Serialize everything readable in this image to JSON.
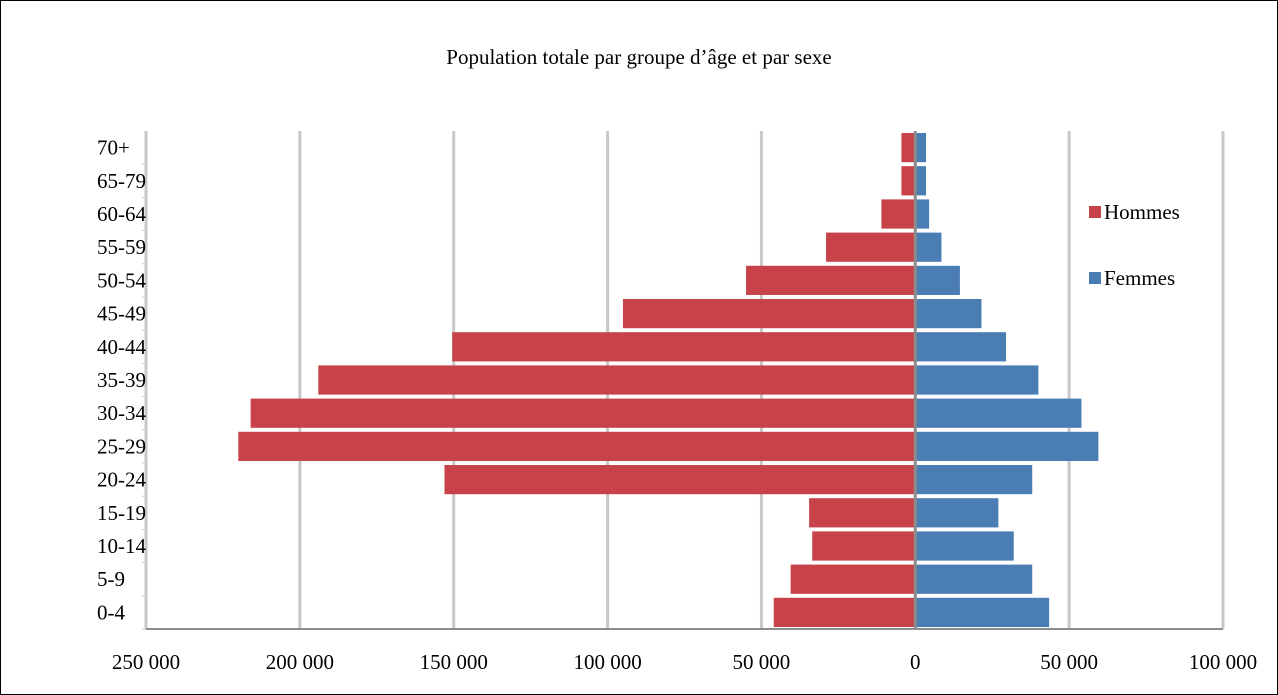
{
  "chart_data": {
    "type": "bar",
    "orientation": "horizontal",
    "title": "Population totale par groupe d’âge et par sexe",
    "xlabel": "",
    "ylabel": "",
    "categories": [
      "0-4",
      "5-9",
      "10-14",
      "15-19",
      "20-24",
      "25-29",
      "30-34",
      "35-39",
      "40-44",
      "45-49",
      "50-54",
      "55-59",
      "60-64",
      "65-79",
      "70+"
    ],
    "series": [
      {
        "name": "Hommes",
        "color": "#C8424A",
        "values": [
          -46000,
          -40500,
          -33500,
          -34500,
          -153000,
          -220000,
          -216000,
          -194000,
          -150500,
          -95000,
          -55000,
          -29000,
          -11000,
          -4500,
          -4500
        ]
      },
      {
        "name": "Femmes",
        "color": "#4A7DB4",
        "values": [
          43500,
          38000,
          32000,
          27000,
          38000,
          59500,
          54000,
          40000,
          29500,
          21500,
          14500,
          8500,
          4500,
          3500,
          3500
        ]
      }
    ],
    "xlim": [
      -250000,
      100000
    ],
    "x_ticks": [
      -250000,
      -200000,
      -150000,
      -100000,
      -50000,
      0,
      50000,
      100000
    ],
    "x_tick_labels": [
      "250 000",
      "200 000",
      "150 000",
      "100 000",
      "50 000",
      "0",
      "50 000",
      "100 000"
    ],
    "grid": "vertical",
    "legend_position": "right"
  }
}
